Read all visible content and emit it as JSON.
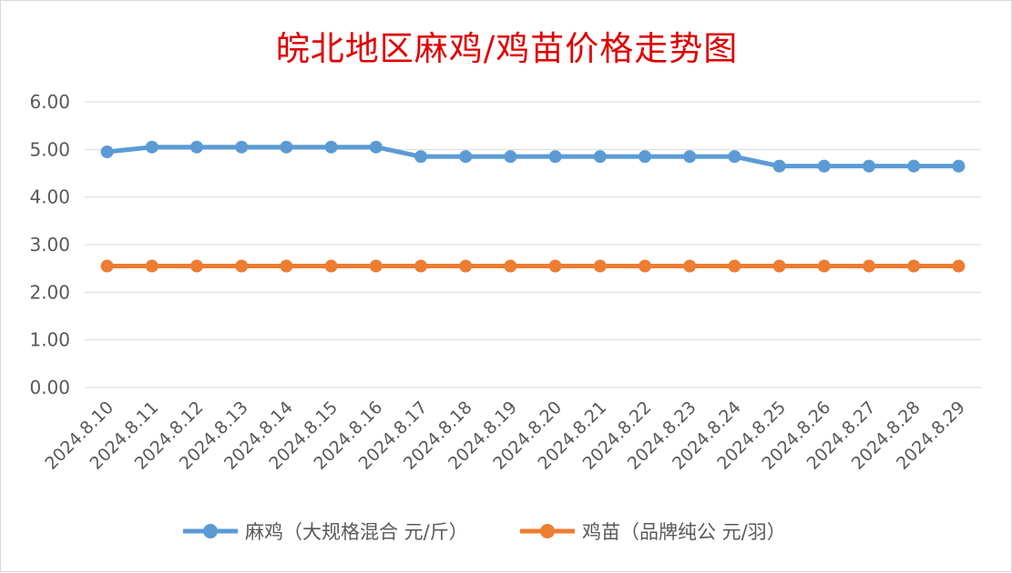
{
  "title": "皖北地区麻鸡/鸡苗价格走势图",
  "chart_data": {
    "type": "line",
    "title": "皖北地区麻鸡/鸡苗价格走势图",
    "categories": [
      "2024.8.10",
      "2024.8.11",
      "2024.8.12",
      "2024.8.13",
      "2024.8.14",
      "2024.8.15",
      "2024.8.16",
      "2024.8.17",
      "2024.8.18",
      "2024.8.19",
      "2024.8.20",
      "2024.8.21",
      "2024.8.22",
      "2024.8.23",
      "2024.8.24",
      "2024.8.25",
      "2024.8.26",
      "2024.8.27",
      "2024.8.28",
      "2024.8.29"
    ],
    "yticks": [
      "0.00",
      "1.00",
      "2.00",
      "3.00",
      "4.00",
      "5.00",
      "6.00"
    ],
    "ylim": [
      0,
      6
    ],
    "grid": true,
    "legend_position": "bottom",
    "series": [
      {
        "name": "麻鸡（大规格混合 元/斤）",
        "color": "#5b9bd5",
        "values": [
          4.95,
          5.05,
          5.05,
          5.05,
          5.05,
          5.05,
          5.05,
          4.85,
          4.85,
          4.85,
          4.85,
          4.85,
          4.85,
          4.85,
          4.85,
          4.65,
          4.65,
          4.65,
          4.65,
          4.65
        ]
      },
      {
        "name": "鸡苗（品牌纯公 元/羽）",
        "color": "#ed7d31",
        "values": [
          2.55,
          2.55,
          2.55,
          2.55,
          2.55,
          2.55,
          2.55,
          2.55,
          2.55,
          2.55,
          2.55,
          2.55,
          2.55,
          2.55,
          2.55,
          2.55,
          2.55,
          2.55,
          2.55,
          2.55
        ]
      }
    ]
  }
}
